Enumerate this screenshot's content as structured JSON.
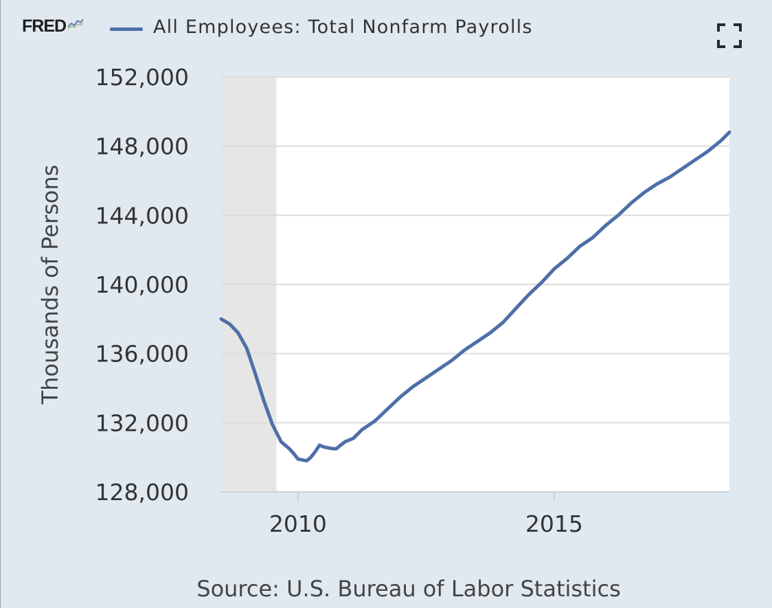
{
  "header": {
    "logo_text": "FRED",
    "legend_label": "All Employees: Total Nonfarm Payrolls",
    "fullscreen_icon": "fullscreen-expand-icon"
  },
  "colors": {
    "background": "#e1e9f0",
    "plot_background": "#ffffff",
    "recession_band": "#e6e6e6",
    "series_line": "#4e6fa8",
    "gridline": "#dcdcdc"
  },
  "source_text": "Source: U.S. Bureau of Labor Statistics",
  "chart_data": {
    "type": "line",
    "title": "",
    "xlabel": "",
    "ylabel": "Thousands of Persons",
    "xlim": [
      2008.5,
      2018.42
    ],
    "ylim": [
      128000,
      152000
    ],
    "yticks": [
      {
        "value": 128000,
        "label": "128,000"
      },
      {
        "value": 132000,
        "label": "132,000"
      },
      {
        "value": 136000,
        "label": "136,000"
      },
      {
        "value": 140000,
        "label": "140,000"
      },
      {
        "value": 144000,
        "label": "144,000"
      },
      {
        "value": 148000,
        "label": "148,000"
      },
      {
        "value": 152000,
        "label": "152,000"
      }
    ],
    "xticks": [
      {
        "value": 2010,
        "label": "2010"
      },
      {
        "value": 2015,
        "label": "2015"
      }
    ],
    "grid": true,
    "recession_shading": [
      {
        "start": 2008.5,
        "end": 2009.58
      }
    ],
    "series": [
      {
        "name": "All Employees: Total Nonfarm Payrolls",
        "x": [
          2008.5,
          2008.67,
          2008.83,
          2009.0,
          2009.17,
          2009.33,
          2009.5,
          2009.67,
          2009.83,
          2009.92,
          2010.0,
          2010.08,
          2010.17,
          2010.25,
          2010.33,
          2010.42,
          2010.5,
          2010.67,
          2010.75,
          2010.83,
          2010.92,
          2011.08,
          2011.25,
          2011.5,
          2011.75,
          2012.0,
          2012.25,
          2012.5,
          2012.75,
          2013.0,
          2013.25,
          2013.5,
          2013.75,
          2014.0,
          2014.25,
          2014.5,
          2014.75,
          2015.0,
          2015.25,
          2015.5,
          2015.75,
          2016.0,
          2016.25,
          2016.5,
          2016.75,
          2017.0,
          2017.25,
          2017.5,
          2017.75,
          2018.0,
          2018.25,
          2018.42
        ],
        "values": [
          138000,
          137700,
          137200,
          136300,
          134800,
          133300,
          131900,
          130900,
          130500,
          130200,
          129900,
          129850,
          129800,
          130000,
          130300,
          130700,
          130600,
          130500,
          130500,
          130700,
          130900,
          131100,
          131600,
          132100,
          132800,
          133500,
          134100,
          134600,
          135100,
          135600,
          136200,
          136700,
          137200,
          137800,
          138600,
          139400,
          140100,
          140900,
          141500,
          142200,
          142700,
          143400,
          144000,
          144700,
          145300,
          145800,
          146200,
          146700,
          147200,
          147700,
          148300,
          148800
        ]
      }
    ]
  }
}
